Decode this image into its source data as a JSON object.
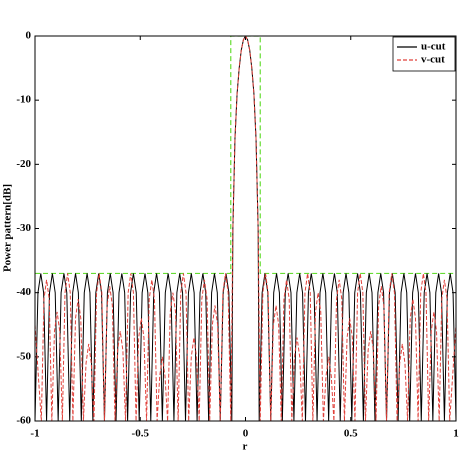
{
  "chart_data": {
    "type": "line",
    "xlabel": "r",
    "ylabel": "Power pattern[dB]",
    "xlim": [
      -1,
      1
    ],
    "ylim": [
      -60,
      0
    ],
    "xticks": [
      -1,
      -0.5,
      0,
      0.5,
      1
    ],
    "yticks": [
      0,
      -10,
      -20,
      -30,
      -40,
      -50,
      -60
    ],
    "legend": "upper right",
    "series": [
      {
        "name": "u-cut",
        "color": "#000000",
        "dash": "solid",
        "x": [
          -1.0,
          -0.986,
          -0.9725,
          -0.959,
          -0.945,
          -0.931,
          -0.9175,
          -0.904,
          -0.89,
          -0.876,
          -0.8625,
          -0.849,
          -0.835,
          -0.821,
          -0.8075,
          -0.794,
          -0.78,
          -0.766,
          -0.7525,
          -0.739,
          -0.725,
          -0.711,
          -0.6975,
          -0.684,
          -0.67,
          -0.656,
          -0.6425,
          -0.629,
          -0.615,
          -0.601,
          -0.5875,
          -0.574,
          -0.56,
          -0.546,
          -0.5325,
          -0.519,
          -0.505,
          -0.491,
          -0.4775,
          -0.464,
          -0.45,
          -0.436,
          -0.4225,
          -0.409,
          -0.395,
          -0.381,
          -0.3675,
          -0.354,
          -0.34,
          -0.326,
          -0.3125,
          -0.299,
          -0.285,
          -0.271,
          -0.2575,
          -0.244,
          -0.23,
          -0.216,
          -0.2025,
          -0.189,
          -0.175,
          -0.161,
          -0.1475,
          -0.134,
          -0.12,
          -0.106,
          -0.0925,
          -0.079,
          -0.065,
          -0.06,
          -0.05,
          -0.04,
          -0.03,
          -0.02,
          -0.01,
          0,
          0.01,
          0.02,
          0.03,
          0.04,
          0.05,
          0.06,
          0.065,
          0.079,
          0.0925,
          0.106,
          0.12,
          0.134,
          0.1475,
          0.161,
          0.175,
          0.189,
          0.2025,
          0.216,
          0.23,
          0.244,
          0.2575,
          0.271,
          0.285,
          0.299,
          0.3125,
          0.326,
          0.34,
          0.354,
          0.3675,
          0.381,
          0.395,
          0.409,
          0.4225,
          0.436,
          0.45,
          0.464,
          0.4775,
          0.491,
          0.505,
          0.519,
          0.5325,
          0.546,
          0.56,
          0.574,
          0.5875,
          0.601,
          0.615,
          0.629,
          0.6425,
          0.656,
          0.67,
          0.684,
          0.6975,
          0.711,
          0.725,
          0.739,
          0.7525,
          0.766,
          0.78,
          0.794,
          0.8075,
          0.821,
          0.835,
          0.849,
          0.8625,
          0.876,
          0.89,
          0.904,
          0.9175,
          0.931,
          0.945,
          0.959,
          0.9725,
          0.986,
          1.0
        ],
        "values": [
          -60,
          -40,
          -37,
          -40,
          -60,
          -40,
          -37,
          -40,
          -60,
          -40,
          -37,
          -40,
          -60,
          -40,
          -37,
          -40,
          -60,
          -40,
          -37,
          -40,
          -60,
          -40,
          -37,
          -40,
          -60,
          -40,
          -37,
          -40,
          -60,
          -40,
          -37,
          -40,
          -60,
          -40,
          -37,
          -40,
          -60,
          -40,
          -37,
          -40,
          -60,
          -40,
          -37,
          -40,
          -60,
          -40,
          -37,
          -40,
          -60,
          -40,
          -37,
          -40,
          -60,
          -40,
          -37,
          -40,
          -60,
          -40,
          -37,
          -40,
          -60,
          -40,
          -37,
          -40,
          -60,
          -40,
          -37,
          -40,
          -60,
          -30,
          -16,
          -9,
          -5,
          -2.2,
          -0.6,
          0,
          -0.6,
          -2.2,
          -5,
          -9,
          -16,
          -30,
          -60,
          -40,
          -37,
          -40,
          -60,
          -40,
          -37,
          -40,
          -60,
          -40,
          -37,
          -40,
          -60,
          -40,
          -37,
          -40,
          -60,
          -40,
          -37,
          -40,
          -60,
          -40,
          -37,
          -40,
          -60,
          -40,
          -37,
          -40,
          -60,
          -40,
          -37,
          -40,
          -60,
          -40,
          -37,
          -40,
          -60,
          -40,
          -37,
          -40,
          -60,
          -40,
          -37,
          -40,
          -60,
          -40,
          -37,
          -40,
          -60,
          -40,
          -37,
          -40,
          -60,
          -40,
          -37,
          -40,
          -60,
          -40,
          -37,
          -40,
          -60,
          -40,
          -37,
          -40,
          -60,
          -40,
          -37,
          -40,
          -60
        ]
      },
      {
        "name": "v-cut",
        "color": "#e0403a",
        "dash": "dashed",
        "x": [
          -1.0,
          -0.97,
          -0.9575,
          -0.945,
          -0.9325,
          -0.92,
          -0.9075,
          -0.895,
          -0.8825,
          -0.87,
          -0.8575,
          -0.845,
          -0.8325,
          -0.82,
          -0.8075,
          -0.795,
          -0.7825,
          -0.77,
          -0.7575,
          -0.745,
          -0.7325,
          -0.72,
          -0.7075,
          -0.695,
          -0.6825,
          -0.67,
          -0.6575,
          -0.645,
          -0.6325,
          -0.62,
          -0.6075,
          -0.595,
          -0.5825,
          -0.57,
          -0.5575,
          -0.545,
          -0.5325,
          -0.52,
          -0.5075,
          -0.495,
          -0.4825,
          -0.47,
          -0.4575,
          -0.445,
          -0.4325,
          -0.42,
          -0.4075,
          -0.395,
          -0.3825,
          -0.37,
          -0.3575,
          -0.345,
          -0.3325,
          -0.32,
          -0.3075,
          -0.295,
          -0.2825,
          -0.27,
          -0.2575,
          -0.245,
          -0.2325,
          -0.22,
          -0.2075,
          -0.195,
          -0.1825,
          -0.17,
          -0.1575,
          -0.145,
          -0.1325,
          -0.12,
          -0.1075,
          -0.095,
          -0.0825,
          -0.07,
          -0.06,
          -0.05,
          -0.04,
          -0.03,
          -0.02,
          -0.01,
          0,
          0.01,
          0.02,
          0.03,
          0.04,
          0.05,
          0.06,
          0.07,
          0.0825,
          0.095,
          0.1075,
          0.12,
          0.1325,
          0.145,
          0.1575,
          0.17,
          0.1825,
          0.195,
          0.2075,
          0.22,
          0.2325,
          0.245,
          0.2575,
          0.27,
          0.2825,
          0.295,
          0.3075,
          0.32,
          0.3325,
          0.345,
          0.3575,
          0.37,
          0.3825,
          0.395,
          0.4075,
          0.42,
          0.4325,
          0.445,
          0.4575,
          0.47,
          0.4825,
          0.495,
          0.5075,
          0.52,
          0.5325,
          0.545,
          0.5575,
          0.57,
          0.5825,
          0.595,
          0.6075,
          0.62,
          0.6325,
          0.645,
          0.6575,
          0.67,
          0.6825,
          0.695,
          0.7075,
          0.72,
          0.7325,
          0.745,
          0.7575,
          0.77,
          0.7825,
          0.795,
          0.8075,
          0.82,
          0.8325,
          0.845,
          0.8575,
          0.87,
          0.8825,
          0.895,
          0.9075,
          0.92,
          0.9325,
          0.945,
          0.9575,
          0.97,
          1.0
        ],
        "values": [
          -45,
          -60,
          -41,
          -38,
          -41,
          -60,
          -46,
          -43,
          -46,
          -60,
          -40,
          -37,
          -40,
          -60,
          -44,
          -41,
          -44,
          -60,
          -51,
          -48,
          -51,
          -60,
          -40,
          -37,
          -40,
          -60,
          -42,
          -39,
          -42,
          -60,
          -49,
          -46,
          -49,
          -60,
          -40,
          -37,
          -40,
          -60,
          -47,
          -44,
          -47,
          -60,
          -41,
          -38,
          -41,
          -60,
          -53,
          -50,
          -53,
          -60,
          -43,
          -40,
          -43,
          -60,
          -40,
          -37,
          -40,
          -60,
          -50,
          -47,
          -50,
          -60,
          -41,
          -38,
          -41,
          -60,
          -45,
          -42,
          -45,
          -60,
          -40,
          -37,
          -40,
          -60,
          -30,
          -16,
          -9,
          -5,
          -2.2,
          -0.6,
          0,
          -0.6,
          -2.2,
          -5,
          -9,
          -16,
          -30,
          -60,
          -40,
          -37,
          -40,
          -60,
          -45,
          -42,
          -45,
          -60,
          -41,
          -38,
          -41,
          -60,
          -50,
          -47,
          -50,
          -60,
          -40,
          -37,
          -40,
          -60,
          -43,
          -40,
          -43,
          -60,
          -53,
          -50,
          -53,
          -60,
          -41,
          -38,
          -41,
          -60,
          -47,
          -44,
          -47,
          -60,
          -40,
          -37,
          -40,
          -60,
          -49,
          -46,
          -49,
          -60,
          -42,
          -39,
          -42,
          -60,
          -40,
          -37,
          -40,
          -60,
          -51,
          -48,
          -51,
          -60,
          -44,
          -41,
          -44,
          -60,
          -40,
          -37,
          -40,
          -60,
          -46,
          -43,
          -46,
          -60,
          -41,
          -38,
          -41,
          -60,
          -45
        ]
      }
    ],
    "mask": {
      "color": "#66dd33",
      "x": [
        -1,
        -0.07,
        -0.07,
        0.07,
        0.07,
        1
      ],
      "values": [
        -37,
        -37,
        0,
        0,
        -37,
        -37
      ]
    }
  }
}
